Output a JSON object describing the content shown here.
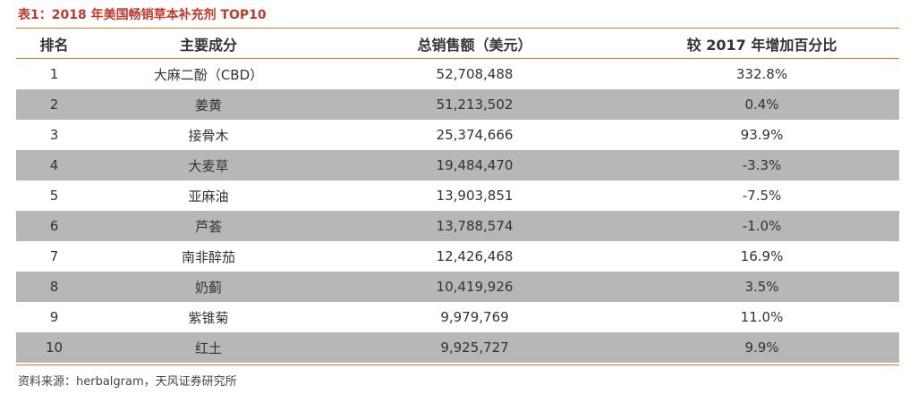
{
  "title": "表1：2018 年美国畅销草本补充剂 TOP10",
  "headers": [
    "排名",
    "主要成分",
    "总销售额（美元）",
    "较 2017 年增加百分比"
  ],
  "rows": [
    {
      "rank": "1",
      "ingredient": "大麻二酚（CBD）",
      "sales": "52,708,488",
      "change": "332.8%"
    },
    {
      "rank": "2",
      "ingredient": "姜黄",
      "sales": "51,213,502",
      "change": "0.4%"
    },
    {
      "rank": "3",
      "ingredient": "接骨木",
      "sales": "25,374,666",
      "change": "93.9%"
    },
    {
      "rank": "4",
      "ingredient": "大麦草",
      "sales": "19,484,470",
      "change": "-3.3%"
    },
    {
      "rank": "5",
      "ingredient": "亚麻油",
      "sales": "13,903,851",
      "change": "-7.5%"
    },
    {
      "rank": "6",
      "ingredient": "芦荟",
      "sales": "13,788,574",
      "change": "-1.0%"
    },
    {
      "rank": "7",
      "ingredient": "南非醉茄",
      "sales": "12,426,468",
      "change": "16.9%"
    },
    {
      "rank": "8",
      "ingredient": "奶蓟",
      "sales": "10,419,926",
      "change": "3.5%"
    },
    {
      "rank": "9",
      "ingredient": "紫锥菊",
      "sales": "9,979,769",
      "change": "11.0%"
    },
    {
      "rank": "10",
      "ingredient": "红土",
      "sales": "9,925,727",
      "change": "9.9%"
    }
  ],
  "source": "资料来源：herbalgram，天风证券研究所"
}
